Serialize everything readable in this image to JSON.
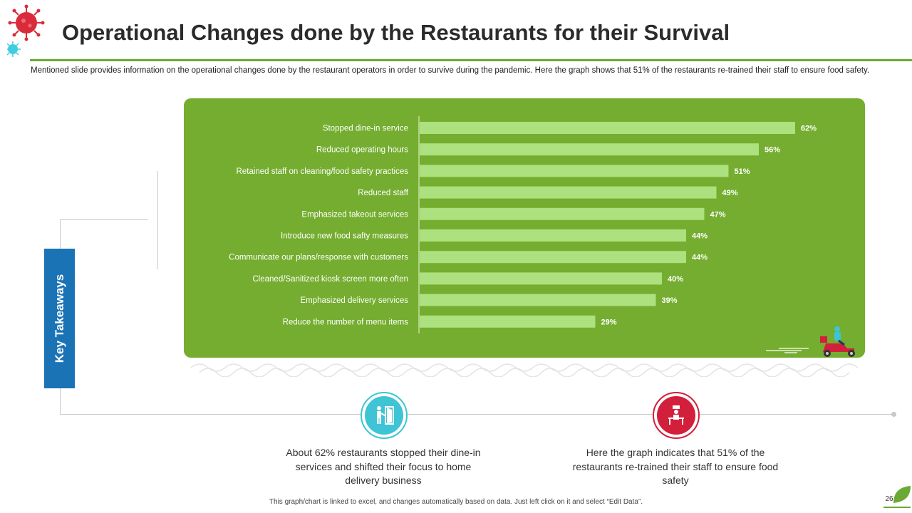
{
  "header": {
    "title": "Operational Changes done by the Restaurants for their Survival",
    "intro": "Mentioned slide provides information on the operational changes done by the restaurant operators in order to survive during the pandemic. Here the graph shows that 51% of the restaurants re-trained their staff to ensure food safety."
  },
  "sidebar": {
    "label": "Key Takeaways"
  },
  "chart_data": {
    "type": "bar",
    "orientation": "horizontal",
    "title": "",
    "xlabel": "",
    "ylabel": "",
    "xlim": [
      0,
      70
    ],
    "categories": [
      "Stopped dine-in service",
      "Reduced operating hours",
      "Retained staff on cleaning/food safety practices",
      "Reduced staff",
      "Emphasized takeout services",
      "Introduce new food safty measures",
      "Communicate our plans/response with customers",
      "Cleaned/Sanitized kiosk screen more often",
      "Emphasized delivery services",
      "Reduce the number of menu items"
    ],
    "values": [
      62,
      56,
      51,
      49,
      47,
      44,
      44,
      40,
      39,
      29
    ],
    "value_labels": [
      "62%",
      "56%",
      "51%",
      "49%",
      "47%",
      "44%",
      "44%",
      "40%",
      "39%",
      "29%"
    ],
    "bar_color": "#ade07e",
    "panel_color": "#74ad2f"
  },
  "takeaways": [
    {
      "icon": "dine-in-door-icon",
      "color": "#3fc4d6",
      "text": "About 62% restaurants stopped their dine-in services and shifted their focus to home delivery business"
    },
    {
      "icon": "staff-cleaning-icon",
      "color": "#d21f3c",
      "text": "Here the graph indicates that 51% of the restaurants re-trained their staff to ensure food safety"
    }
  ],
  "footer": {
    "note": "This graph/chart is linked to excel, and changes automatically based on data. Just left click on it and select “Edit Data”.",
    "page_number": "26"
  }
}
